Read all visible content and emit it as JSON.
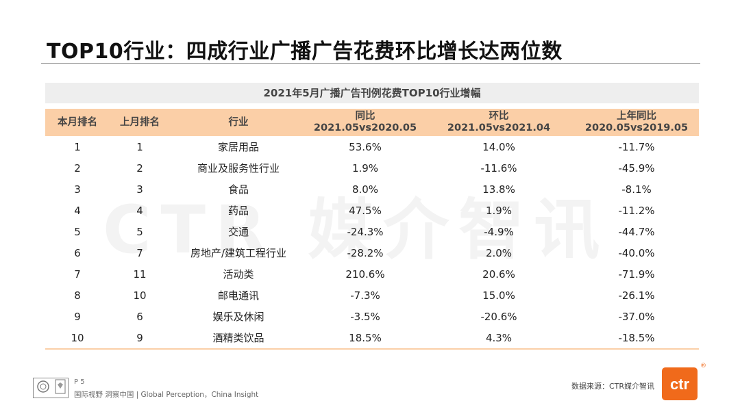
{
  "title": "TOP10行业：四成行业广播广告花费环比增长达两位数",
  "watermark": "CTR 媒介智讯",
  "table": {
    "caption": "2021年5月广播广告刊例花费TOP10行业增幅",
    "headers": [
      {
        "line1": "本月排名",
        "line2": ""
      },
      {
        "line1": "上月排名",
        "line2": ""
      },
      {
        "line1": "行业",
        "line2": ""
      },
      {
        "line1": "同比",
        "line2": "2021.05vs2020.05"
      },
      {
        "line1": "环比",
        "line2": "2021.05vs2021.04"
      },
      {
        "line1": "上年同比",
        "line2": "2020.05vs2019.05"
      }
    ],
    "rows": [
      [
        "1",
        "1",
        "家居用品",
        "53.6%",
        "14.0%",
        "-11.7%"
      ],
      [
        "2",
        "2",
        "商业及服务性行业",
        "1.9%",
        "-11.6%",
        "-45.9%"
      ],
      [
        "3",
        "3",
        "食品",
        "8.0%",
        "13.8%",
        "-8.1%"
      ],
      [
        "4",
        "4",
        "药品",
        "47.5%",
        "1.9%",
        "-11.2%"
      ],
      [
        "5",
        "5",
        "交通",
        "-24.3%",
        "-4.9%",
        "-44.7%"
      ],
      [
        "6",
        "7",
        "房地产/建筑工程行业",
        "-28.2%",
        "2.0%",
        "-40.0%"
      ],
      [
        "7",
        "11",
        "活动类",
        "210.6%",
        "20.6%",
        "-71.9%"
      ],
      [
        "8",
        "10",
        "邮电通讯",
        "-7.3%",
        "15.0%",
        "-26.1%"
      ],
      [
        "9",
        "6",
        "娱乐及休闲",
        "-3.5%",
        "-20.6%",
        "-37.0%"
      ],
      [
        "10",
        "9",
        "酒精类饮品",
        "18.5%",
        "4.3%",
        "-18.5%"
      ]
    ]
  },
  "footer": {
    "page": "P 5",
    "slogan": "国际视野  洞察中国 | Global Perception，China Insight",
    "source": "数据来源：CTR媒介智讯",
    "brand": "ctr",
    "registered": "®"
  },
  "colors": {
    "header_bg": "#fbcfa7",
    "caption_bg": "#eeeeee",
    "brand": "#f06a1b"
  }
}
